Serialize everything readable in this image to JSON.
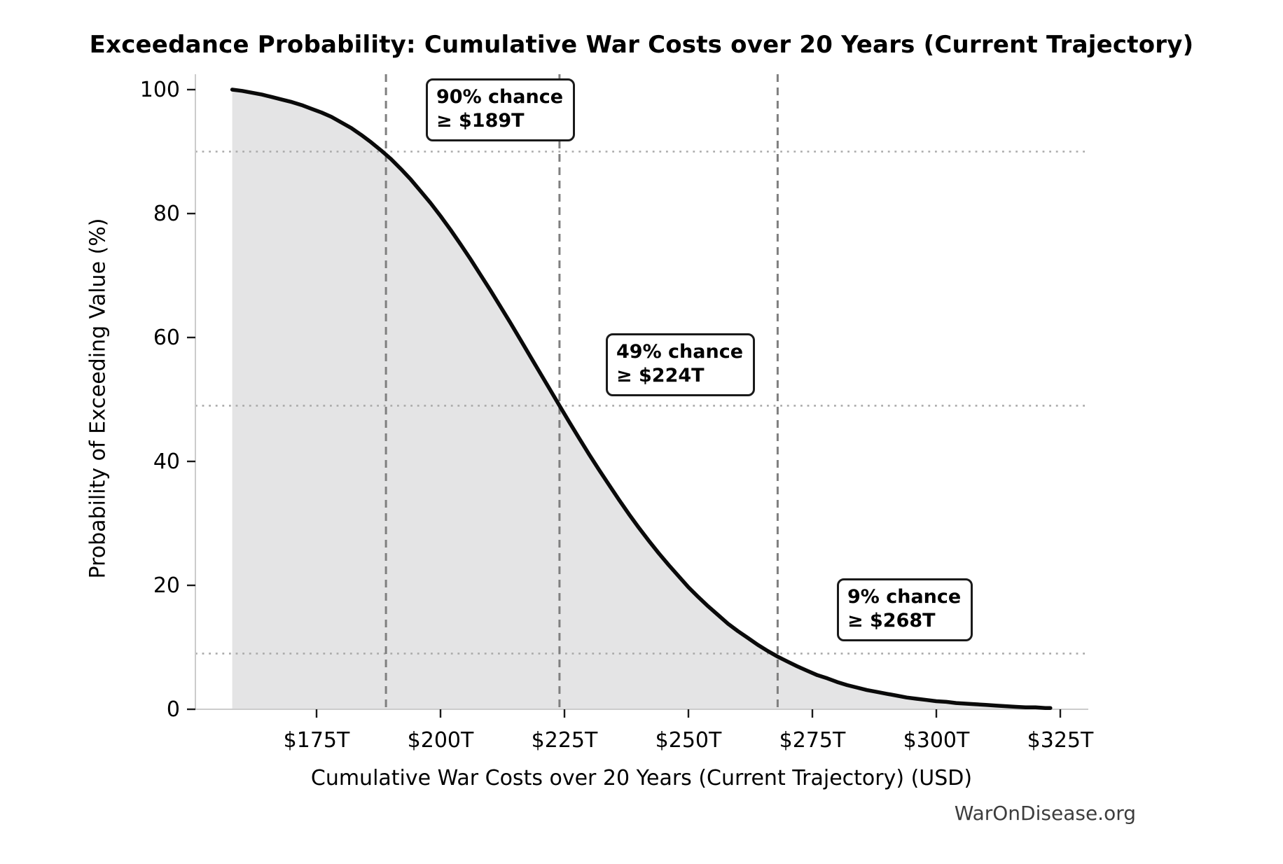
{
  "watermark": "WarOnDisease.org",
  "colors": {
    "curve": "#0a0a0a",
    "fill_under_curve": "#e4e4e5",
    "vline_dashed": "#7f7f7f",
    "hline_dotted": "#aaaaaa",
    "spine": "#cccccc",
    "tick": "#1a1a1a",
    "tick_label": "#000000",
    "annotation_border": "#1a1a1a",
    "watermark_text": "#3d3d3d"
  },
  "chart_data": {
    "type": "area",
    "title": "Exceedance Probability: Cumulative War Costs over 20 Years (Current Trajectory)",
    "xlabel": "Cumulative War Costs over 20 Years (Current Trajectory) (USD)",
    "ylabel": "Probability of Exceeding Value (%)",
    "xlim_trillions": [
      151,
      331
    ],
    "ylim": [
      0,
      100
    ],
    "x_tick_values": [
      175,
      200,
      225,
      250,
      275,
      300,
      325
    ],
    "x_tick_labels": [
      "$175T",
      "$200T",
      "$225T",
      "$250T",
      "$275T",
      "$300T",
      "$325T"
    ],
    "y_tick_values": [
      0,
      20,
      40,
      60,
      80,
      100
    ],
    "y_tick_labels": [
      "0",
      "20",
      "40",
      "60",
      "80",
      "100"
    ],
    "legend": "none",
    "grid": "reference lines only",
    "series": [
      {
        "name": "exceedance-probability-curve",
        "x_trillions": [
          158,
          160,
          162,
          164,
          166,
          168,
          170,
          172,
          174,
          176,
          178,
          180,
          182,
          184,
          186,
          188,
          190,
          192,
          194,
          196,
          198,
          200,
          202,
          204,
          206,
          208,
          210,
          212,
          214,
          216,
          218,
          220,
          222,
          224,
          226,
          228,
          230,
          232,
          234,
          236,
          238,
          240,
          242,
          244,
          246,
          248,
          250,
          252,
          254,
          256,
          258,
          260,
          262,
          264,
          266,
          268,
          270,
          272,
          274,
          276,
          278,
          280,
          282,
          284,
          286,
          288,
          290,
          292,
          294,
          296,
          298,
          300,
          302,
          304,
          306,
          308,
          310,
          312,
          314,
          316,
          318,
          320,
          322,
          323
        ],
        "y_percent": [
          100.0,
          99.8,
          99.5,
          99.2,
          98.8,
          98.4,
          98.0,
          97.5,
          96.9,
          96.3,
          95.6,
          94.7,
          93.8,
          92.7,
          91.5,
          90.2,
          88.8,
          87.2,
          85.5,
          83.6,
          81.7,
          79.6,
          77.4,
          75.1,
          72.7,
          70.2,
          67.7,
          65.1,
          62.5,
          59.8,
          57.1,
          54.4,
          51.7,
          49.0,
          46.3,
          43.7,
          41.1,
          38.6,
          36.2,
          33.8,
          31.5,
          29.3,
          27.2,
          25.2,
          23.3,
          21.5,
          19.7,
          18.1,
          16.6,
          15.2,
          13.8,
          12.6,
          11.5,
          10.4,
          9.4,
          8.5,
          7.7,
          6.9,
          6.2,
          5.5,
          5.0,
          4.4,
          3.9,
          3.5,
          3.1,
          2.8,
          2.5,
          2.2,
          1.9,
          1.7,
          1.5,
          1.3,
          1.2,
          1.0,
          0.9,
          0.8,
          0.7,
          0.6,
          0.5,
          0.4,
          0.3,
          0.3,
          0.2,
          0.2
        ]
      }
    ],
    "annotations": [
      {
        "line1": "90% chance",
        "line2": "≥ $189T",
        "probability_pct": 90,
        "threshold_trillions": 189,
        "threshold_label": "$189T"
      },
      {
        "line1": "49% chance",
        "line2": "≥ $224T",
        "probability_pct": 49,
        "threshold_trillions": 224,
        "threshold_label": "$224T"
      },
      {
        "line1": "9% chance",
        "line2": "≥ $268T",
        "probability_pct": 9,
        "threshold_trillions": 268,
        "threshold_label": "$268T"
      }
    ],
    "gridlines": {
      "horizontal_dotted_at_pct": [
        90,
        49,
        9
      ],
      "vertical_dashed_at_trillions": [
        189,
        224,
        268
      ]
    }
  }
}
